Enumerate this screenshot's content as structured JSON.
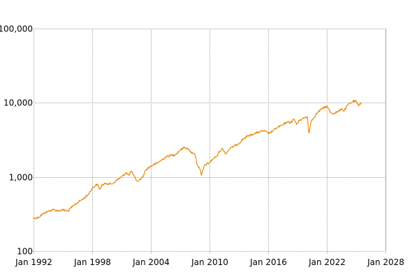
{
  "chart_data": {
    "type": "line",
    "title": "",
    "xlabel": "",
    "ylabel": "",
    "y_scale": "log",
    "ylim": [
      100,
      100000
    ],
    "xlim": [
      "1992-01",
      "2028-01"
    ],
    "grid": true,
    "colors": {
      "series": "#e8890c",
      "grid": "#a0a0a0",
      "text": "#000000"
    },
    "y_ticks": [
      {
        "value": 100,
        "label": "100"
      },
      {
        "value": 1000,
        "label": "1,000"
      },
      {
        "value": 10000,
        "label": "10,000"
      },
      {
        "value": 100000,
        "label": "100,000"
      }
    ],
    "x_ticks": [
      {
        "value": "1992-01",
        "label": "Jan 1992"
      },
      {
        "value": "1998-01",
        "label": "Jan 1998"
      },
      {
        "value": "2004-01",
        "label": "Jan 2004"
      },
      {
        "value": "2010-01",
        "label": "Jan 2010"
      },
      {
        "value": "2016-01",
        "label": "Jan 2016"
      },
      {
        "value": "2022-01",
        "label": "Jan 2022"
      },
      {
        "value": "2028-01",
        "label": "Jan 2028"
      }
    ],
    "series": [
      {
        "points": [
          [
            "1992-01",
            275
          ],
          [
            "1992-07",
            285
          ],
          [
            "1993-01",
            320
          ],
          [
            "1993-07",
            345
          ],
          [
            "1994-01",
            360
          ],
          [
            "1994-07",
            350
          ],
          [
            "1995-01",
            360
          ],
          [
            "1995-07",
            345
          ],
          [
            "1996-01",
            400
          ],
          [
            "1996-07",
            450
          ],
          [
            "1997-01",
            500
          ],
          [
            "1997-07",
            560
          ],
          [
            "1998-01",
            700
          ],
          [
            "1998-07",
            800
          ],
          [
            "1998-10",
            680
          ],
          [
            "1999-01",
            780
          ],
          [
            "1999-07",
            820
          ],
          [
            "2000-01",
            800
          ],
          [
            "2000-07",
            900
          ],
          [
            "2001-01",
            1000
          ],
          [
            "2001-07",
            1150
          ],
          [
            "2001-10",
            1050
          ],
          [
            "2002-01",
            1200
          ],
          [
            "2002-07",
            900
          ],
          [
            "2002-10",
            880
          ],
          [
            "2003-03",
            1000
          ],
          [
            "2003-07",
            1250
          ],
          [
            "2004-01",
            1400
          ],
          [
            "2004-07",
            1500
          ],
          [
            "2005-01",
            1650
          ],
          [
            "2005-07",
            1850
          ],
          [
            "2006-01",
            1950
          ],
          [
            "2006-07",
            2000
          ],
          [
            "2007-01",
            2300
          ],
          [
            "2007-06",
            2500
          ],
          [
            "2007-10",
            2450
          ],
          [
            "2008-01",
            2200
          ],
          [
            "2008-07",
            2050
          ],
          [
            "2008-10",
            1450
          ],
          [
            "2009-01",
            1300
          ],
          [
            "2009-03",
            1050
          ],
          [
            "2009-07",
            1450
          ],
          [
            "2010-01",
            1550
          ],
          [
            "2010-05",
            1750
          ],
          [
            "2010-10",
            1900
          ],
          [
            "2011-01",
            2200
          ],
          [
            "2011-05",
            2400
          ],
          [
            "2011-09",
            2050
          ],
          [
            "2012-01",
            2350
          ],
          [
            "2012-07",
            2600
          ],
          [
            "2013-01",
            2850
          ],
          [
            "2013-07",
            3300
          ],
          [
            "2014-01",
            3600
          ],
          [
            "2014-07",
            3800
          ],
          [
            "2015-01",
            4000
          ],
          [
            "2015-07",
            4200
          ],
          [
            "2016-02",
            3850
          ],
          [
            "2016-07",
            4200
          ],
          [
            "2017-01",
            4700
          ],
          [
            "2017-07",
            5000
          ],
          [
            "2018-01",
            5600
          ],
          [
            "2018-03",
            5300
          ],
          [
            "2018-09",
            6000
          ],
          [
            "2018-12",
            5100
          ],
          [
            "2019-04",
            5900
          ],
          [
            "2019-09",
            6200
          ],
          [
            "2020-01",
            6500
          ],
          [
            "2020-03",
            3900
          ],
          [
            "2020-06",
            5700
          ],
          [
            "2020-09",
            6300
          ],
          [
            "2021-01",
            7300
          ],
          [
            "2021-07",
            8300
          ],
          [
            "2022-01",
            9000
          ],
          [
            "2022-06",
            7300
          ],
          [
            "2022-10",
            7200
          ],
          [
            "2023-03",
            7600
          ],
          [
            "2023-07",
            8400
          ],
          [
            "2023-10",
            7700
          ],
          [
            "2024-03",
            9400
          ],
          [
            "2024-07",
            10000
          ],
          [
            "2024-09",
            10500
          ],
          [
            "2025-01",
            10400
          ],
          [
            "2025-04",
            9000
          ],
          [
            "2025-07",
            10100
          ]
        ]
      }
    ]
  }
}
